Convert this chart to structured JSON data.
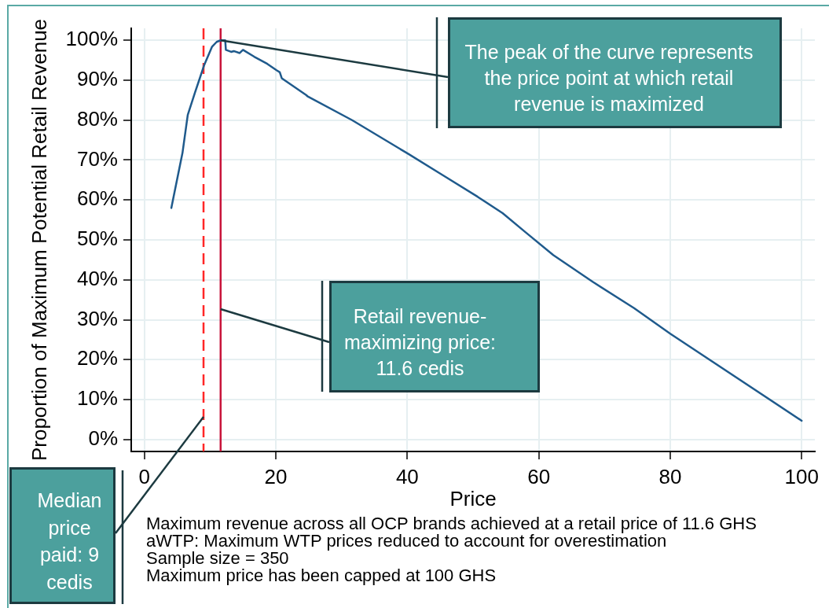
{
  "chart_data": {
    "type": "line",
    "xlabel": "Price",
    "ylabel": "Proportion of Maximum Potential Retail Revenue",
    "x": [
      4.1,
      5.8,
      6.6,
      7.7,
      9.1,
      10.3,
      11.0,
      11.6,
      12.3,
      12.4,
      13.2,
      13.6,
      14.5,
      15.0,
      16.7,
      18.7,
      20.1,
      20.6,
      20.9,
      24.6,
      24.8,
      31.6,
      40.2,
      45.5,
      50.7,
      54.5,
      58.0,
      62.2,
      68.2,
      74.5,
      80.0,
      100
    ],
    "values": [
      58,
      71.8,
      81.3,
      86.9,
      93.8,
      98.4,
      99.6,
      100,
      100,
      97.6,
      97.1,
      97.3,
      96.8,
      97.6,
      95.9,
      94.1,
      92.5,
      92.0,
      90.5,
      86.3,
      86.0,
      80.0,
      71.5,
      66.1,
      60.8,
      56.7,
      51.9,
      46.2,
      39.5,
      32.9,
      26.5,
      4.7
    ],
    "color": "#1f5a8c",
    "marker": "none",
    "xlim": [
      -2,
      102
    ],
    "xticks": [
      0,
      20,
      40,
      60,
      80,
      100
    ],
    "ylim": [
      -3,
      103
    ],
    "yticks": [
      {
        "value": 0,
        "label": "0%"
      },
      {
        "value": 10,
        "label": "10%"
      },
      {
        "value": 20,
        "label": "20%"
      },
      {
        "value": 30,
        "label": "30%"
      },
      {
        "value": 40,
        "label": "40%"
      },
      {
        "value": 50,
        "label": "50%"
      },
      {
        "value": 60,
        "label": "60%"
      },
      {
        "value": 70,
        "label": "70%"
      },
      {
        "value": 80,
        "label": "80%"
      },
      {
        "value": 90,
        "label": "90%"
      },
      {
        "value": 100,
        "label": "100%"
      }
    ],
    "grid": true,
    "ref_lines": [
      {
        "axis": "x",
        "value": 9,
        "label": "Median price paid: 9 cedis",
        "color": "#ff2626",
        "line_style": "dashed"
      },
      {
        "axis": "x",
        "value": 11.6,
        "label": "Retail revenue-maximizing price: 11.6 cedis",
        "color": "#c8133a"
      }
    ],
    "annotations": [
      {
        "text": "The peak of the curve represents the price point at which retail revenue is maximized",
        "x": 11.6,
        "y": 100
      },
      "Maximum revenue across all OCP brands achieved at a retail price of 11.6 GHS",
      "aWTP: Maximum WTP prices reduced to account for overestimation",
      "Sample size = 350",
      "Maximum price has been capped at 100 GHS"
    ]
  }
}
